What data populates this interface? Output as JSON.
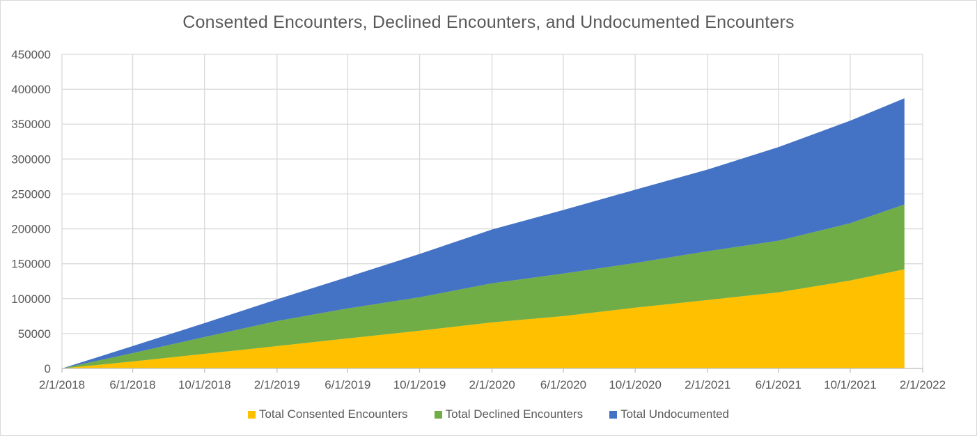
{
  "chart_data": {
    "type": "area",
    "stacked": true,
    "title": "Consented Encounters, Declined Encounters, and Undocumented Encounters",
    "xlabel": "",
    "ylabel": "",
    "ylim": [
      0,
      450000
    ],
    "y_ticks": [
      "0",
      "50000",
      "100000",
      "150000",
      "200000",
      "250000",
      "300000",
      "350000",
      "400000",
      "450000"
    ],
    "x_range": [
      "2/1/2018",
      "2/1/2022"
    ],
    "x_ticks": [
      "2/1/2018",
      "6/1/2018",
      "10/1/2018",
      "2/1/2019",
      "6/1/2019",
      "10/1/2019",
      "2/1/2020",
      "6/1/2020",
      "10/1/2020",
      "2/1/2021",
      "6/1/2021",
      "10/1/2021",
      "2/1/2022"
    ],
    "x": [
      "2/1/2018",
      "6/1/2018",
      "10/1/2018",
      "2/1/2019",
      "6/1/2019",
      "10/1/2019",
      "2/1/2020",
      "6/1/2020",
      "10/1/2020",
      "2/1/2021",
      "6/1/2021",
      "10/1/2021",
      "1/1/2022"
    ],
    "series": [
      {
        "name": "Total Consented Encounters",
        "color": "#FFC000",
        "values": [
          0,
          10000,
          21000,
          32000,
          43000,
          54000,
          66000,
          75000,
          87000,
          98000,
          109000,
          126000,
          142000
        ]
      },
      {
        "name": "Total Declined Encounters",
        "color": "#70AD47",
        "values": [
          0,
          12000,
          24000,
          36000,
          43000,
          48000,
          56000,
          61000,
          64000,
          70000,
          74000,
          82000,
          93000
        ]
      },
      {
        "name": "Total Undocumented",
        "color": "#4472C4",
        "values": [
          0,
          10000,
          20000,
          31000,
          45000,
          62000,
          77000,
          91000,
          105000,
          117000,
          134000,
          147000,
          152000
        ]
      }
    ],
    "grid": true,
    "legend_position": "bottom"
  }
}
